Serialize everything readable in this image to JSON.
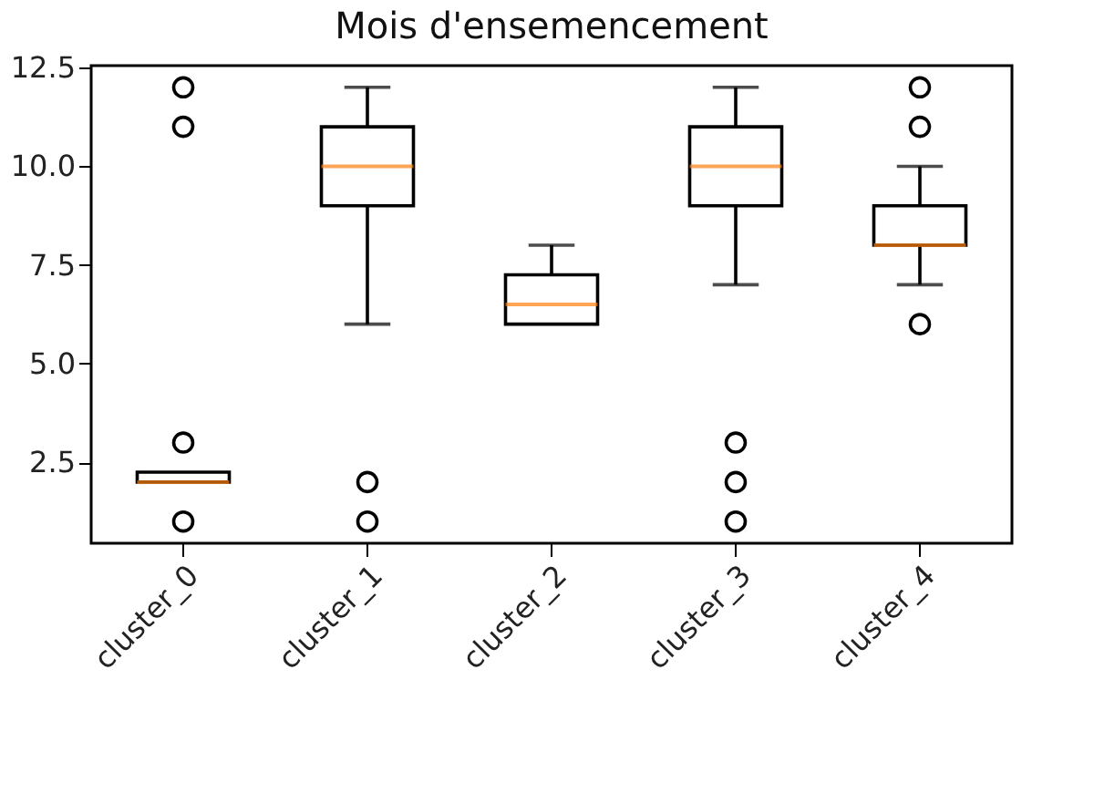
{
  "chart_data": {
    "type": "box",
    "title": "Mois d'ensemencement",
    "categories": [
      "cluster_0",
      "cluster_1",
      "cluster_2",
      "cluster_3",
      "cluster_4"
    ],
    "series": [
      {
        "color": "#000000",
        "boxes": [
          {
            "low": 2,
            "q1": 2,
            "median": 2,
            "q3": 2.25,
            "high": 2.25,
            "outliers": [
              1,
              3,
              11,
              12
            ]
          },
          {
            "low": 6,
            "q1": 9,
            "median": 10,
            "q3": 11,
            "high": 12,
            "outliers": [
              1,
              2
            ]
          },
          {
            "low": 6,
            "q1": 6,
            "median": 6.5,
            "q3": 7.25,
            "high": 8
          },
          {
            "low": 7,
            "q1": 9,
            "median": 10,
            "q3": 11,
            "high": 12,
            "outliers": [
              1,
              2,
              3
            ]
          },
          {
            "low": 7,
            "q1": 8,
            "median": 8,
            "q3": 9,
            "high": 10,
            "outliers": [
              6,
              11,
              12
            ]
          }
        ]
      }
    ],
    "ylim": [
      0.45,
      12.55
    ],
    "yticks": [
      2.5,
      {
        "value": 5,
        "label": "5.0"
      },
      7.5,
      {
        "value": 10,
        "label": "10.0"
      },
      12.5
    ],
    "grid": false
  }
}
